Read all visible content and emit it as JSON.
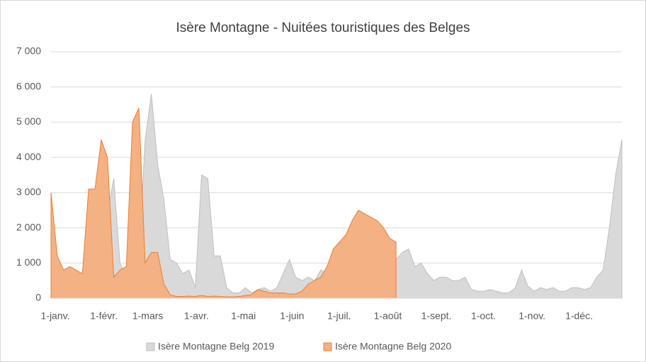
{
  "chart_data": {
    "type": "area",
    "title": "Isère Montagne - Nuitées touristiques des Belges",
    "x": [
      0,
      4,
      8,
      12,
      16,
      20,
      24,
      28,
      32,
      36,
      40,
      44,
      48,
      52,
      56,
      60,
      64,
      68,
      72,
      76,
      80,
      84,
      88,
      92,
      96,
      100,
      104,
      108,
      112,
      116,
      120,
      124,
      128,
      132,
      136,
      140,
      144,
      148,
      152,
      156,
      160,
      164,
      168,
      172,
      176,
      180,
      184,
      188,
      192,
      196,
      200,
      204,
      208,
      212,
      216,
      220,
      224,
      228,
      232,
      236,
      240,
      244,
      248,
      252,
      256,
      260,
      264,
      268,
      272,
      276,
      280,
      284,
      288,
      292,
      296,
      300,
      304,
      308,
      312,
      316,
      320,
      324,
      328,
      332,
      336,
      340,
      344,
      348,
      352,
      356,
      360,
      364
    ],
    "xlim": [
      0,
      364
    ],
    "xticks": [
      {
        "value": 0,
        "label": "1-janv."
      },
      {
        "value": 31,
        "label": "1-févr."
      },
      {
        "value": 59,
        "label": "1-mars"
      },
      {
        "value": 90,
        "label": "1-avr."
      },
      {
        "value": 120,
        "label": "1-mai"
      },
      {
        "value": 151,
        "label": "1-juin"
      },
      {
        "value": 181,
        "label": "1-juil."
      },
      {
        "value": 212,
        "label": "1-août"
      },
      {
        "value": 243,
        "label": "1-sept."
      },
      {
        "value": 273,
        "label": "1-oct."
      },
      {
        "value": 304,
        "label": "1-nov."
      },
      {
        "value": 334,
        "label": "1-déc."
      }
    ],
    "ylim": [
      0,
      7000
    ],
    "yticks": [
      0,
      {
        "value": 1000,
        "label": "1 000"
      },
      {
        "value": 2000,
        "label": "2 000"
      },
      {
        "value": 3000,
        "label": "3 000"
      },
      {
        "value": 4000,
        "label": "4 000"
      },
      {
        "value": 5000,
        "label": "5 000"
      },
      {
        "value": 6000,
        "label": "6 000"
      },
      {
        "value": 7000,
        "label": "7 000"
      }
    ],
    "grid": true,
    "legend": "bottom",
    "series": [
      {
        "name": "Isère Montagne Belg 2019",
        "color": "#d9d9d9",
        "stroke": "#bfbfbf",
        "values": [
          1650,
          700,
          400,
          300,
          400,
          700,
          900,
          1300,
          3000,
          2400,
          3400,
          1000,
          600,
          700,
          1000,
          4500,
          5800,
          3800,
          2800,
          1100,
          1000,
          700,
          800,
          300,
          3500,
          3400,
          1200,
          1200,
          300,
          150,
          150,
          300,
          150,
          250,
          300,
          200,
          300,
          700,
          1100,
          600,
          500,
          600,
          500,
          800,
          700,
          900,
          1300,
          1500,
          1900,
          1600,
          2000,
          1800,
          1600,
          1300,
          1200,
          1100,
          1300,
          1400,
          900,
          1000,
          700,
          500,
          600,
          600,
          500,
          500,
          600,
          250,
          200,
          200,
          250,
          200,
          150,
          150,
          300,
          800,
          350,
          200,
          300,
          250,
          300,
          200,
          200,
          300,
          300,
          250,
          300,
          600,
          800,
          2000,
          3500,
          4500
        ]
      },
      {
        "name": "Isère Montagne Belg 2020",
        "color": "#f4b183",
        "stroke": "#ed7d31",
        "values": [
          3000,
          1200,
          800,
          900,
          800,
          700,
          3100,
          3100,
          4500,
          4000,
          600,
          800,
          900,
          5000,
          5400,
          1000,
          1300,
          1300,
          400,
          100,
          50,
          50,
          60,
          50,
          80,
          50,
          60,
          50,
          40,
          40,
          50,
          80,
          100,
          250,
          200,
          150,
          150,
          150,
          120,
          120,
          200,
          400,
          500,
          600,
          900,
          1400,
          1600,
          1800,
          2200,
          2500,
          2400,
          2300,
          2200,
          2000,
          1700,
          1600,
          null,
          null,
          null,
          null,
          null,
          null,
          null,
          null,
          null,
          null,
          null,
          null,
          null,
          null,
          null,
          null,
          null,
          null,
          null,
          null,
          null,
          null,
          null,
          null,
          null,
          null,
          null,
          null,
          null,
          null,
          null,
          null,
          null,
          null,
          null,
          null
        ]
      }
    ]
  }
}
